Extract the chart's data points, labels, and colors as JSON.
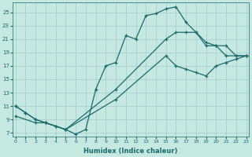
{
  "xlabel": "Humidex (Indice chaleur)",
  "bg_color": "#c5e8e0",
  "line_color": "#1a6b6b",
  "grid_color": "#a0cccc",
  "xlim": [
    -0.3,
    23.3
  ],
  "ylim": [
    6.5,
    26.5
  ],
  "xticks": [
    0,
    1,
    2,
    3,
    4,
    5,
    6,
    7,
    8,
    9,
    10,
    11,
    12,
    13,
    14,
    15,
    16,
    17,
    18,
    19,
    20,
    21,
    22,
    23
  ],
  "yticks": [
    7,
    9,
    11,
    13,
    15,
    17,
    19,
    21,
    23,
    25
  ],
  "line1_x": [
    0,
    1,
    2,
    3,
    4,
    5,
    6,
    7,
    8,
    9,
    10,
    11,
    12,
    13,
    14,
    15,
    16,
    17,
    18,
    19,
    20,
    21,
    22,
    23
  ],
  "line1_y": [
    11,
    10,
    9,
    8.5,
    8,
    7.5,
    6.8,
    7.5,
    13.5,
    17,
    17.5,
    21.5,
    21,
    24.5,
    24.8,
    25.5,
    25.8,
    23.5,
    22,
    20.5,
    20,
    18.5,
    18.5,
    18.5
  ],
  "line2_x": [
    0,
    1,
    2,
    3,
    5,
    10,
    15,
    16,
    17,
    18,
    19,
    20,
    21,
    22,
    23
  ],
  "line2_y": [
    11,
    10,
    9,
    8.5,
    7.5,
    13.5,
    21,
    22,
    22,
    22,
    20,
    20,
    20,
    18.5,
    18.5
  ],
  "line3_x": [
    0,
    2,
    3,
    4,
    5,
    10,
    15,
    16,
    17,
    18,
    19,
    20,
    21,
    22,
    23
  ],
  "line3_y": [
    9.5,
    8.5,
    8.5,
    8,
    7.5,
    12,
    18.5,
    17,
    16.5,
    16,
    15.5,
    17,
    17.5,
    18,
    18.5
  ]
}
